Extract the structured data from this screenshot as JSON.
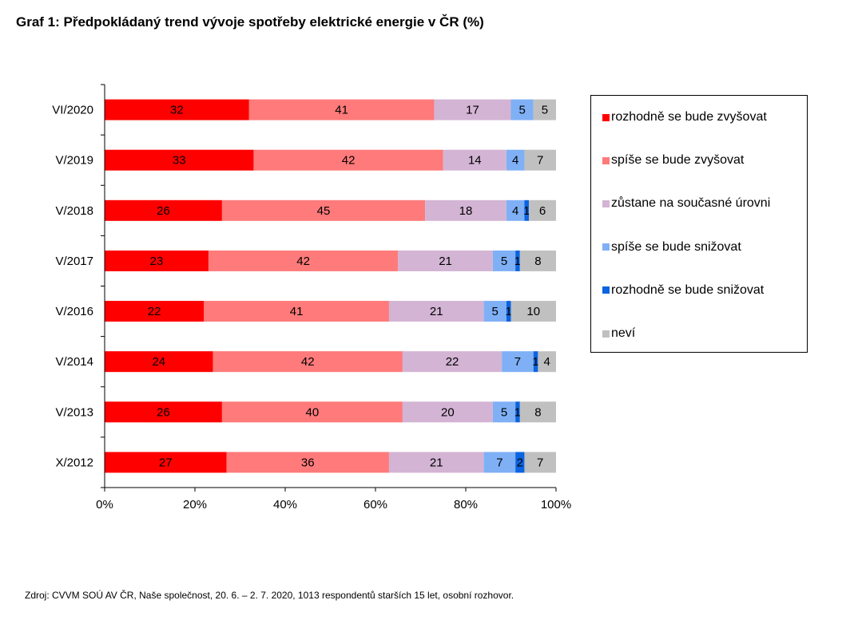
{
  "title": "Graf 1: Předpokládaný trend vývoje spotřeby elektrické energie v ČR (%)",
  "source": "Zdroj: CVVM SOÚ AV ČR, Naše společnost, 20. 6. – 2. 7. 2020, 1013 respondentů starších 15 let, osobní rozhovor.",
  "chart_data": {
    "type": "bar",
    "orientation": "horizontal",
    "stacked": "percent",
    "title": "Graf 1: Předpokládaný trend vývoje spotřeby elektrické energie v ČR (%)",
    "categories": [
      "VI/2020",
      "V/2019",
      "V/2018",
      "V/2017",
      "V/2016",
      "V/2014",
      "V/2013",
      "X/2012"
    ],
    "series": [
      {
        "name": "rozhodně se bude zvyšovat",
        "color": "#ff0000",
        "values": [
          32,
          33,
          26,
          23,
          22,
          24,
          26,
          27
        ]
      },
      {
        "name": "spíše se bude zvyšovat",
        "color": "#ff7a7a",
        "values": [
          41,
          42,
          45,
          42,
          41,
          42,
          40,
          36
        ]
      },
      {
        "name": "zůstane na současné úrovni",
        "color": "#d3b4d4",
        "values": [
          17,
          14,
          18,
          21,
          21,
          22,
          20,
          21
        ]
      },
      {
        "name": "spíše se bude snižovat",
        "color": "#7fb0f5",
        "values": [
          5,
          4,
          4,
          5,
          5,
          7,
          5,
          7
        ]
      },
      {
        "name": "rozhodně se bude snižovat",
        "color": "#0b64e0",
        "values": [
          0,
          0,
          1,
          1,
          1,
          1,
          1,
          2
        ]
      },
      {
        "name": "neví",
        "color": "#c0c0c0",
        "values": [
          5,
          7,
          6,
          8,
          10,
          4,
          8,
          7
        ]
      }
    ],
    "xlim": [
      0,
      100
    ],
    "x_ticks": [
      "0%",
      "20%",
      "40%",
      "60%",
      "80%",
      "100%"
    ],
    "grid": false,
    "legend_position": "right"
  }
}
